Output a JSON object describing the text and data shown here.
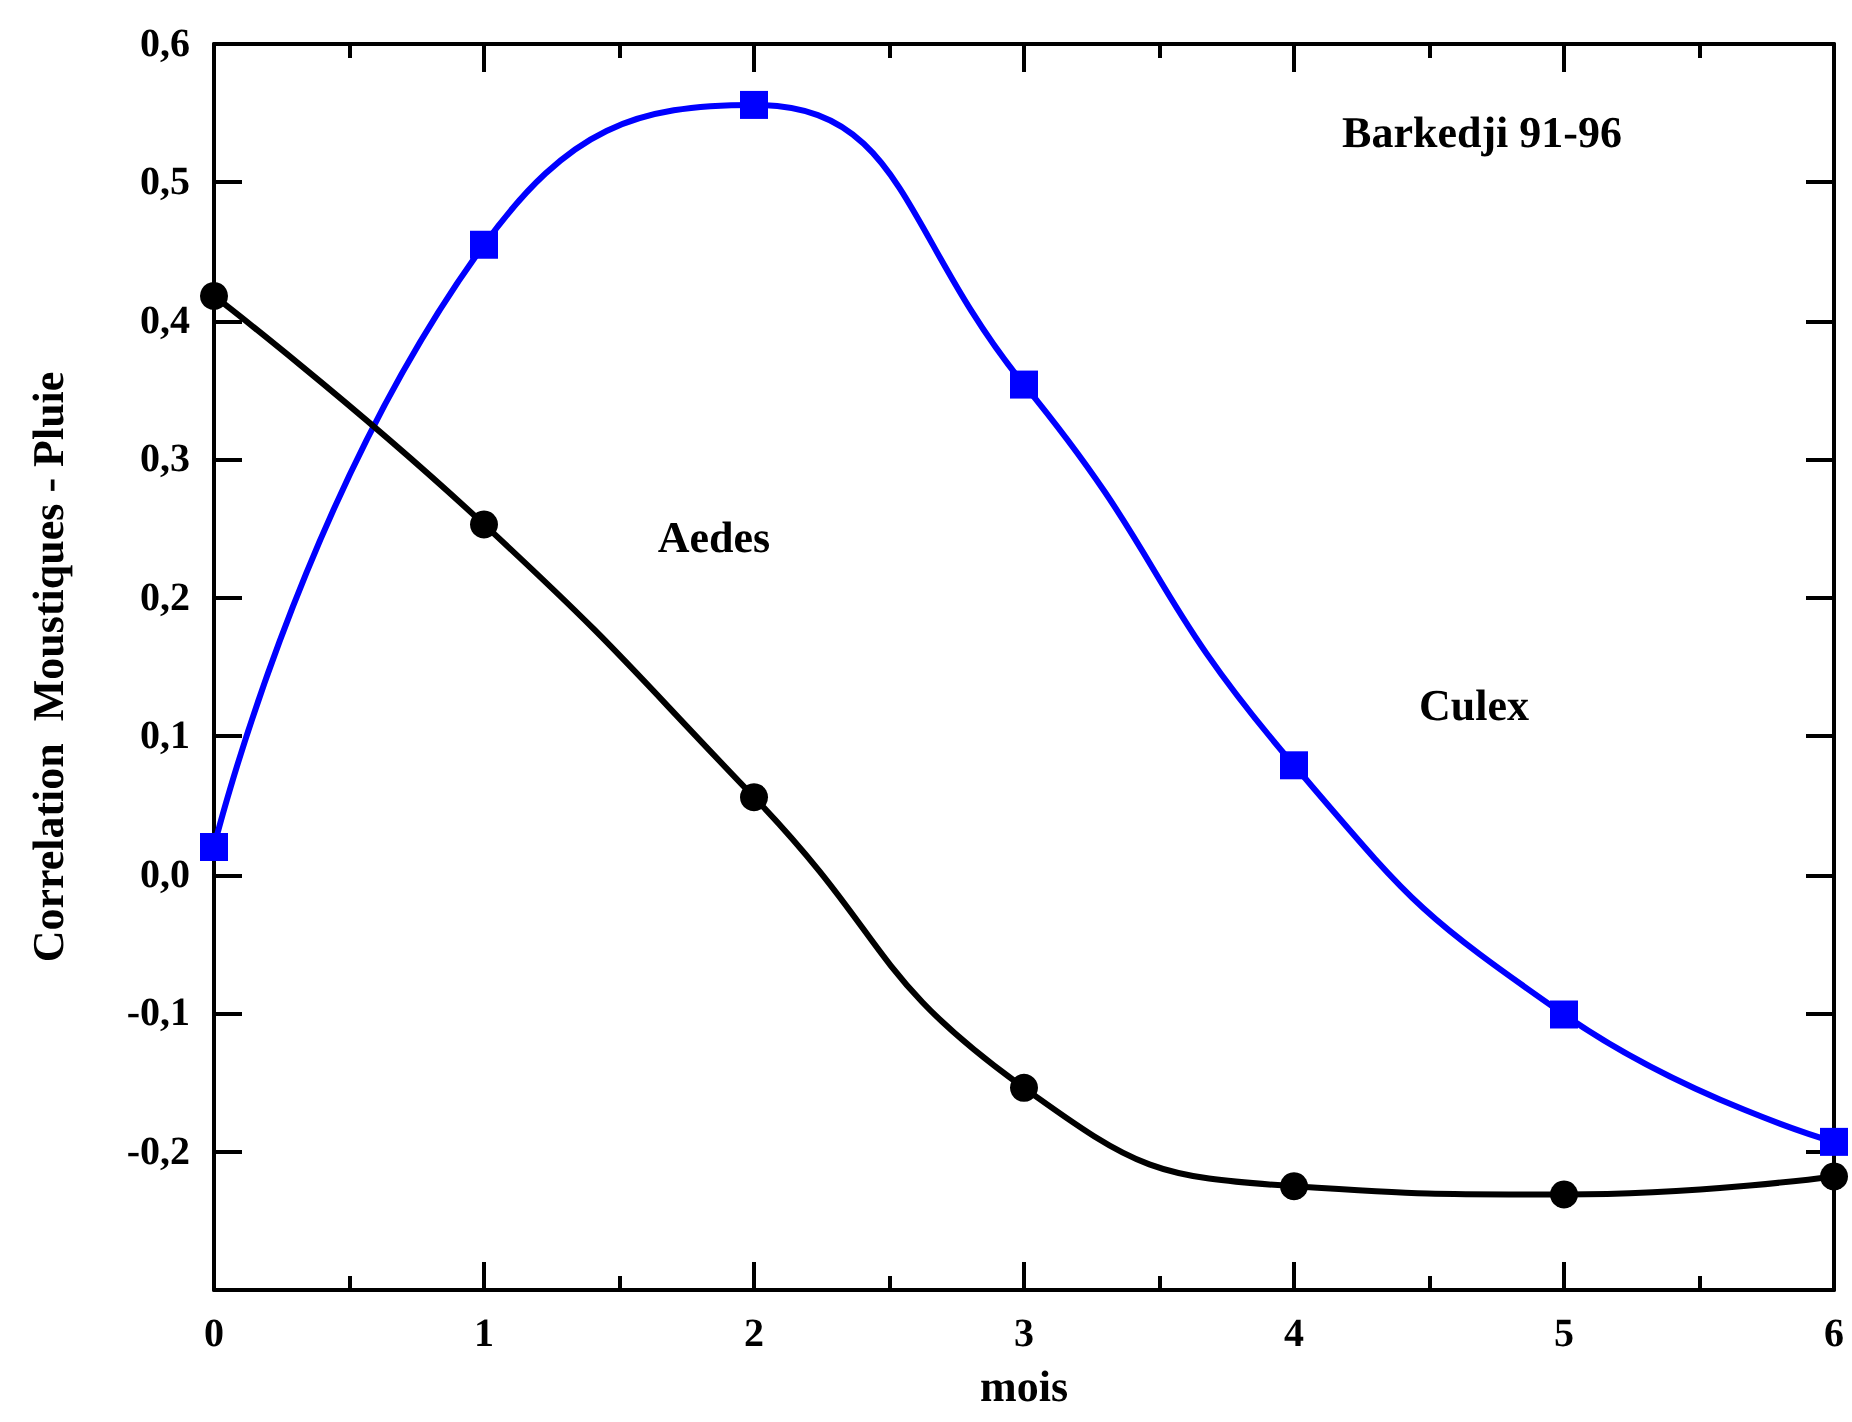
{
  "chart_data": {
    "type": "line",
    "title": "Barkedji 91-96",
    "xlabel": "mois",
    "ylabel": "Correlation  Moustiques - Pluie",
    "x": [
      0,
      1,
      2,
      3,
      4,
      5,
      6
    ],
    "series": [
      {
        "name": "Culex",
        "color": "#0000ff",
        "marker": "square",
        "values": [
          0.02,
          0.455,
          0.556,
          0.354,
          0.079,
          -0.101,
          -0.193
        ]
      },
      {
        "name": "Aedes",
        "color": "#000000",
        "marker": "circle",
        "values": [
          0.418,
          0.253,
          0.056,
          -0.154,
          -0.225,
          -0.231,
          -0.218
        ]
      }
    ],
    "xlim": [
      0,
      6
    ],
    "xticks": [
      0,
      1,
      2,
      3,
      4,
      5,
      6
    ],
    "ylim": [
      -0.3,
      0.6
    ],
    "yticks": [
      {
        "value": -0.3,
        "label": null
      },
      {
        "value": -0.2,
        "label": "-0,2"
      },
      {
        "value": -0.1,
        "label": "-0,1"
      },
      {
        "value": 0,
        "label": "0,0"
      },
      {
        "value": 0.1,
        "label": "0,1"
      },
      {
        "value": 0.2,
        "label": "0,2"
      },
      {
        "value": 0.3,
        "label": "0,3"
      },
      {
        "value": 0.4,
        "label": "0,4"
      },
      {
        "value": 0.5,
        "label": "0,5"
      },
      {
        "value": 0.6,
        "label": "0,6"
      }
    ],
    "grid": false,
    "legend": false,
    "line_style": "solid"
  }
}
